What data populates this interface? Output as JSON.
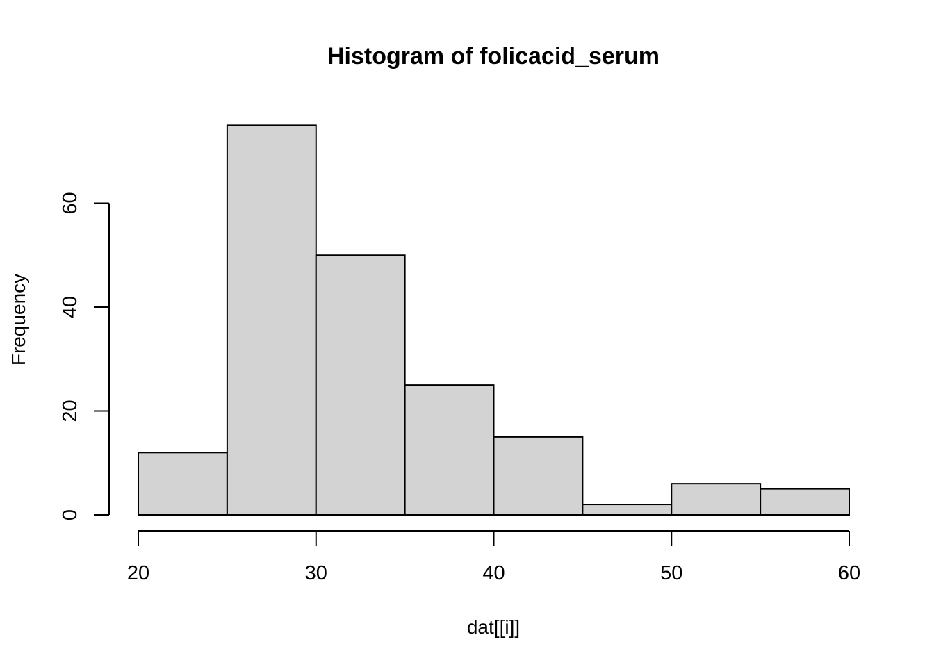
{
  "chart_data": {
    "type": "bar",
    "subtype": "histogram",
    "title": "Histogram of folicacid_serum",
    "xlabel": "dat[[i]]",
    "ylabel": "Frequency",
    "bins": [
      {
        "x0": 20,
        "x1": 25,
        "count": 12
      },
      {
        "x0": 25,
        "x1": 30,
        "count": 75
      },
      {
        "x0": 30,
        "x1": 35,
        "count": 50
      },
      {
        "x0": 35,
        "x1": 40,
        "count": 25
      },
      {
        "x0": 40,
        "x1": 45,
        "count": 15
      },
      {
        "x0": 45,
        "x1": 50,
        "count": 2
      },
      {
        "x0": 50,
        "x1": 55,
        "count": 6
      },
      {
        "x0": 55,
        "x1": 60,
        "count": 5
      }
    ],
    "xlim": [
      20,
      60
    ],
    "ylim": [
      0,
      75
    ],
    "xticks": [
      20,
      30,
      40,
      50,
      60
    ],
    "yticks": [
      0,
      20,
      40,
      60
    ],
    "bar_color": "#d3d3d3",
    "edge_color": "#000000",
    "grid": false,
    "legend": "none"
  }
}
